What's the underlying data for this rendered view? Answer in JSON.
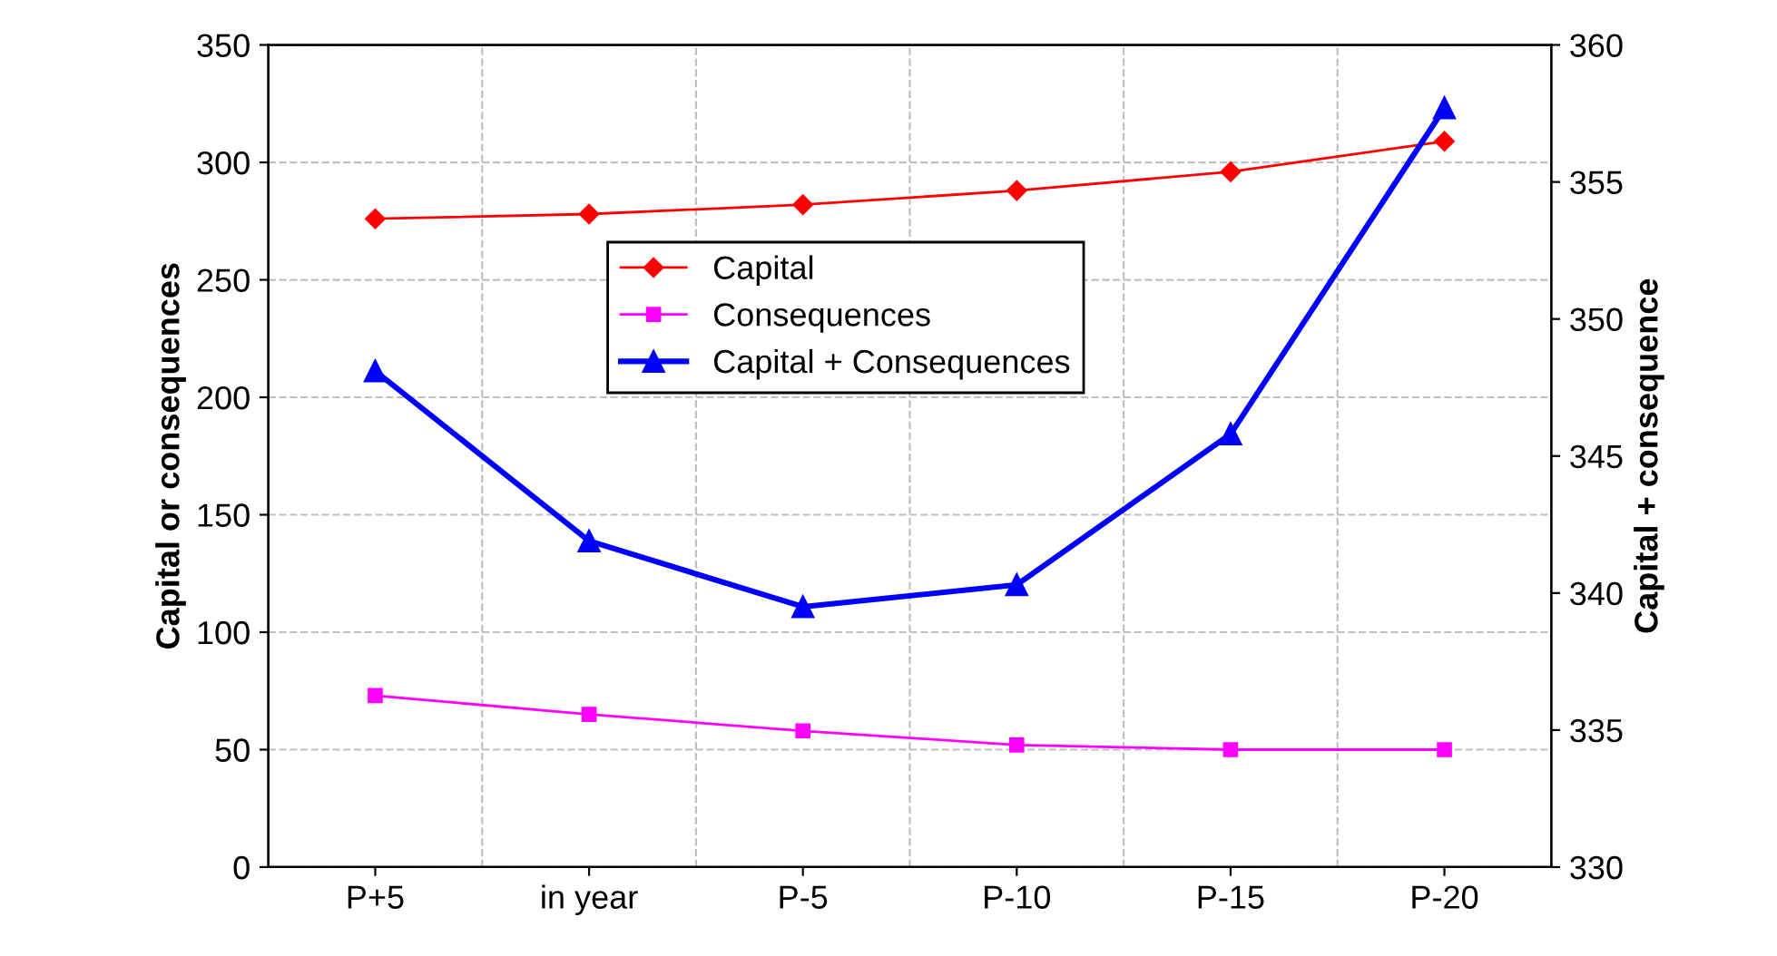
{
  "chart_data": {
    "type": "line",
    "ylabel": "Capital or consequences",
    "y2label": "Capital + consequence",
    "categories": [
      "P+5",
      "in year",
      "P-5",
      "P-10",
      "P-15",
      "P-20"
    ],
    "series": [
      {
        "name": "Capital",
        "color": "#ff0000",
        "marker": "diamond",
        "values": [
          276,
          278,
          282,
          288,
          296,
          309
        ]
      },
      {
        "name": "Consequences",
        "color": "#ff00ff",
        "marker": "square",
        "values": [
          73,
          65,
          58,
          52,
          50,
          50
        ]
      },
      {
        "name": "Capital + Consequences",
        "color": "#0000ff",
        "marker": "triangle",
        "axis": "y2",
        "values": [
          348.1,
          341.9,
          339.5,
          340.3,
          345.8,
          357.7
        ]
      }
    ],
    "ylim": [
      0,
      350
    ],
    "yticks": [
      0,
      50,
      100,
      150,
      200,
      250,
      300,
      350
    ],
    "y2lim": [
      330,
      360
    ],
    "y2ticks": [
      330,
      335,
      340,
      345,
      350,
      355,
      360
    ],
    "grid": true,
    "legend": "top center",
    "line_style": "solid"
  }
}
